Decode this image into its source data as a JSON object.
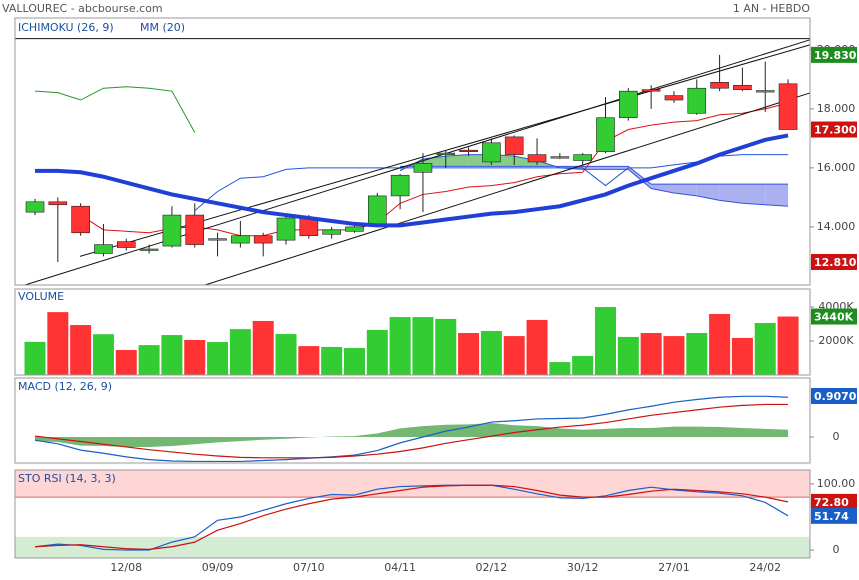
{
  "header": {
    "title": "VALLOUREC - abcbourse.com",
    "period": "1 AN - HEBDO"
  },
  "chart_data": [
    {
      "type": "candlestick",
      "indicators": [
        {
          "name": "ICHIMOKU (26, 9)",
          "color": "#1a4fa0"
        },
        {
          "name": "MM (20)",
          "color": "#1a4fa0"
        }
      ],
      "categories": [
        null,
        null,
        null,
        null,
        "12/08",
        null,
        null,
        null,
        "09/09",
        null,
        null,
        null,
        "07/10",
        null,
        null,
        null,
        "04/11",
        null,
        null,
        null,
        "02/12",
        null,
        null,
        null,
        "30/12",
        null,
        null,
        null,
        "27/01",
        null,
        null,
        null,
        "24/02",
        null
      ],
      "open": [
        14.5,
        14.85,
        14.7,
        13.1,
        13.5,
        13.2,
        13.35,
        14.4,
        13.55,
        13.45,
        13.7,
        13.55,
        14.3,
        13.75,
        13.85,
        14.05,
        15.05,
        15.85,
        16.45,
        16.6,
        16.2,
        17.05,
        16.45,
        16.33,
        16.25,
        16.55,
        17.7,
        18.65,
        18.45,
        17.85,
        18.9,
        18.8,
        18.58,
        18.85
      ],
      "high": [
        14.95,
        15.0,
        14.8,
        14.1,
        13.6,
        13.4,
        14.7,
        14.8,
        13.8,
        14.2,
        13.8,
        14.4,
        14.4,
        14.0,
        14.1,
        15.15,
        15.8,
        16.5,
        16.6,
        16.7,
        17.0,
        17.1,
        17.0,
        16.5,
        16.5,
        18.4,
        18.7,
        18.8,
        18.6,
        19.0,
        19.83,
        19.4,
        19.6,
        19.0
      ],
      "low": [
        14.4,
        12.81,
        13.7,
        13.0,
        13.2,
        13.1,
        13.3,
        13.3,
        13.0,
        13.3,
        13.0,
        13.4,
        13.6,
        13.6,
        13.8,
        14.0,
        14.6,
        14.5,
        16.0,
        16.4,
        16.1,
        16.1,
        16.1,
        16.3,
        16.1,
        16.5,
        17.6,
        18.0,
        18.2,
        17.8,
        18.6,
        18.6,
        17.9,
        17.3
      ],
      "close": [
        14.85,
        14.75,
        13.8,
        13.4,
        13.3,
        13.25,
        14.4,
        13.4,
        13.6,
        13.7,
        13.45,
        14.3,
        13.7,
        13.9,
        14.0,
        15.05,
        15.75,
        16.15,
        16.5,
        16.55,
        16.85,
        16.45,
        16.2,
        16.38,
        16.45,
        17.7,
        18.6,
        18.6,
        18.3,
        18.7,
        18.7,
        18.65,
        18.62,
        17.3
      ],
      "up_color": "#33cc33",
      "down_color": "#ff3333",
      "ma": {
        "color": "#1f3fd6",
        "values": [
          15.9,
          15.9,
          15.85,
          15.7,
          15.5,
          15.3,
          15.1,
          14.95,
          14.8,
          14.65,
          14.5,
          14.4,
          14.3,
          14.2,
          14.1,
          14.05,
          14.05,
          14.15,
          14.25,
          14.35,
          14.45,
          14.5,
          14.6,
          14.7,
          14.9,
          15.1,
          15.4,
          15.65,
          15.9,
          16.15,
          16.45,
          16.7,
          16.95,
          17.1
        ]
      },
      "ichimoku": {
        "tenkan": {
          "color": "#dd1111",
          "values": [
            null,
            null,
            14.4,
            13.9,
            13.85,
            13.8,
            13.95,
            14.0,
            13.9,
            13.7,
            13.7,
            13.9,
            13.9,
            13.9,
            13.9,
            14.15,
            14.8,
            15.1,
            15.2,
            15.35,
            15.4,
            15.5,
            15.7,
            15.8,
            15.85,
            16.9,
            17.3,
            17.45,
            17.55,
            17.6,
            17.8,
            17.85,
            18.0,
            18.2
          ]
        },
        "kijun": {
          "color": "#2255dd",
          "values": [
            null,
            null,
            null,
            null,
            null,
            null,
            null,
            14.55,
            15.2,
            15.65,
            15.7,
            15.95,
            16.0,
            16.0,
            16.0,
            16.0,
            16.0,
            16.0,
            16.0,
            16.0,
            16.0,
            16.0,
            16.0,
            16.0,
            16.0,
            15.4,
            16.0,
            16.0,
            16.1,
            16.2,
            16.4,
            16.45,
            16.45,
            16.45
          ]
        },
        "chikou": {
          "color": "#229922",
          "values": [
            18.6,
            18.55,
            18.3,
            18.7,
            18.75,
            18.7,
            18.6,
            17.2,
            null,
            null,
            null,
            null,
            null,
            null,
            null,
            null,
            null,
            null,
            null,
            null,
            null,
            null,
            null,
            null,
            null,
            null,
            null,
            null,
            null,
            null,
            null,
            null,
            null,
            null
          ]
        },
        "span_a": [
          null,
          null,
          null,
          null,
          null,
          null,
          null,
          null,
          null,
          null,
          null,
          null,
          null,
          null,
          null,
          null,
          15.9,
          16.3,
          16.4,
          16.45,
          16.45,
          16.4,
          16.25,
          16.0,
          15.95,
          15.95,
          15.95,
          15.3,
          15.15,
          15.05,
          14.9,
          14.8,
          14.75,
          14.7
        ],
        "span_b": [
          null,
          null,
          null,
          null,
          null,
          null,
          null,
          null,
          null,
          null,
          null,
          null,
          null,
          null,
          null,
          null,
          16.05,
          16.05,
          16.05,
          16.05,
          16.05,
          16.05,
          16.05,
          16.05,
          16.05,
          16.05,
          16.05,
          15.45,
          15.45,
          15.45,
          15.45,
          15.45,
          15.45,
          15.45
        ],
        "bull_color": "#88cc88",
        "bear_color": "#aab0f0"
      },
      "trendlines": [
        {
          "x": [
            -0.44,
            33.96
          ],
          "values": [
            12.03,
            20.34
          ]
        },
        {
          "x": [
            1.97,
            33.96
          ],
          "values": [
            13.0,
            20.17
          ]
        },
        {
          "x": [
            7.45,
            33.96
          ],
          "values": [
            12.03,
            18.54
          ]
        }
      ],
      "level": 20.38,
      "badges": [
        {
          "value": 19.83,
          "label": "19.830",
          "color": "#1e8c1e"
        },
        {
          "value": 17.3,
          "label": "17.300",
          "color": "#cc1111"
        },
        {
          "value": 12.81,
          "label": "12.810",
          "color": "#cc1111"
        }
      ],
      "ylim": [
        12.03,
        21.08
      ],
      "yticks": [
        {
          "value": 14,
          "label": "14.000"
        },
        {
          "value": 16,
          "label": "16.000"
        },
        {
          "value": 18,
          "label": "18.000"
        },
        {
          "value": 20,
          "label": "20.000"
        }
      ]
    },
    {
      "type": "bar",
      "title": "VOLUME",
      "values": [
        1950,
        3700,
        2940,
        2400,
        1470,
        1760,
        2350,
        2060,
        1940,
        2700,
        3180,
        2410,
        1700,
        1650,
        1590,
        2650,
        3410,
        3410,
        3300,
        2470,
        2590,
        2290,
        3240,
        760,
        1120,
        4000,
        2240,
        2470,
        2290,
        2470,
        3590,
        2180,
        3060,
        3440
      ],
      "ylim": [
        0,
        5060
      ],
      "yticks": [
        {
          "value": 2000,
          "label": "2000K"
        },
        {
          "value": 4000,
          "label": "4000K"
        }
      ],
      "badges": [
        {
          "value": 3440,
          "label": "3440K",
          "color": "#1e8c1e"
        }
      ]
    },
    {
      "type": "line",
      "title": "MACD (12, 26, 9)",
      "series": [
        {
          "color": "#1a5fc8",
          "values": [
            -0.07,
            -0.15,
            -0.29,
            -0.36,
            -0.44,
            -0.5,
            -0.53,
            -0.54,
            -0.54,
            -0.54,
            -0.52,
            -0.5,
            -0.47,
            -0.44,
            -0.4,
            -0.3,
            -0.13,
            0.0,
            0.13,
            0.22,
            0.33,
            0.36,
            0.4,
            0.41,
            0.42,
            0.5,
            0.6,
            0.68,
            0.77,
            0.83,
            0.88,
            0.9,
            0.9,
            0.88
          ]
        },
        {
          "color": "#cc1111",
          "values": [
            0.02,
            -0.04,
            -0.1,
            -0.16,
            -0.22,
            -0.28,
            -0.33,
            -0.38,
            -0.42,
            -0.45,
            -0.46,
            -0.46,
            -0.46,
            -0.45,
            -0.42,
            -0.38,
            -0.32,
            -0.24,
            -0.14,
            -0.06,
            0.02,
            0.1,
            0.16,
            0.22,
            0.26,
            0.32,
            0.4,
            0.48,
            0.54,
            0.6,
            0.66,
            0.7,
            0.72,
            0.72
          ]
        }
      ],
      "histogram": {
        "color": "#5aaa5a",
        "values": [
          -0.09,
          -0.11,
          -0.19,
          -0.2,
          -0.22,
          -0.22,
          -0.2,
          -0.16,
          -0.12,
          -0.09,
          -0.06,
          -0.04,
          -0.01,
          0.01,
          0.02,
          0.08,
          0.19,
          0.24,
          0.27,
          0.28,
          0.31,
          0.26,
          0.24,
          0.19,
          0.16,
          0.18,
          0.2,
          0.2,
          0.23,
          0.23,
          0.22,
          0.2,
          0.18,
          0.16
        ]
      },
      "ylim": [
        -0.575,
        1.305
      ],
      "yticks": [
        0
      ],
      "badges": [
        {
          "value": 0.907,
          "label": "0.9070",
          "color": "#1a5fc8"
        }
      ]
    },
    {
      "type": "line",
      "title": "STO RSI (14, 3, 3)",
      "series": [
        {
          "color": "#1a5fc8",
          "values": [
            5,
            9,
            7,
            1,
            0,
            0,
            12,
            20,
            45,
            50,
            60,
            70,
            78,
            84,
            83,
            92,
            96,
            97,
            98,
            98,
            98,
            92,
            85,
            79,
            78,
            82,
            90,
            95,
            91,
            88,
            86,
            82,
            72,
            51.74
          ]
        },
        {
          "color": "#cc1111",
          "values": [
            5,
            7,
            8,
            5,
            2,
            1,
            5,
            12,
            30,
            40,
            52,
            62,
            70,
            77,
            80,
            85,
            90,
            95,
            97,
            98,
            98,
            96,
            90,
            83,
            80,
            80,
            84,
            89,
            92,
            90,
            88,
            85,
            80,
            72.8
          ]
        }
      ],
      "zones": {
        "overbought": 80,
        "oversold": 20,
        "overbought_color": "#ffd6d6",
        "oversold_color": "#d4ecd4"
      },
      "ylim": [
        -12,
        121
      ],
      "yticks": [
        0,
        {
          "value": 100,
          "label": "100.00"
        }
      ],
      "badges": [
        {
          "value": 72.8,
          "label": "72.80",
          "color": "#cc1111"
        },
        {
          "value": 51.74,
          "label": "51.74",
          "color": "#1a5fc8"
        }
      ]
    }
  ]
}
